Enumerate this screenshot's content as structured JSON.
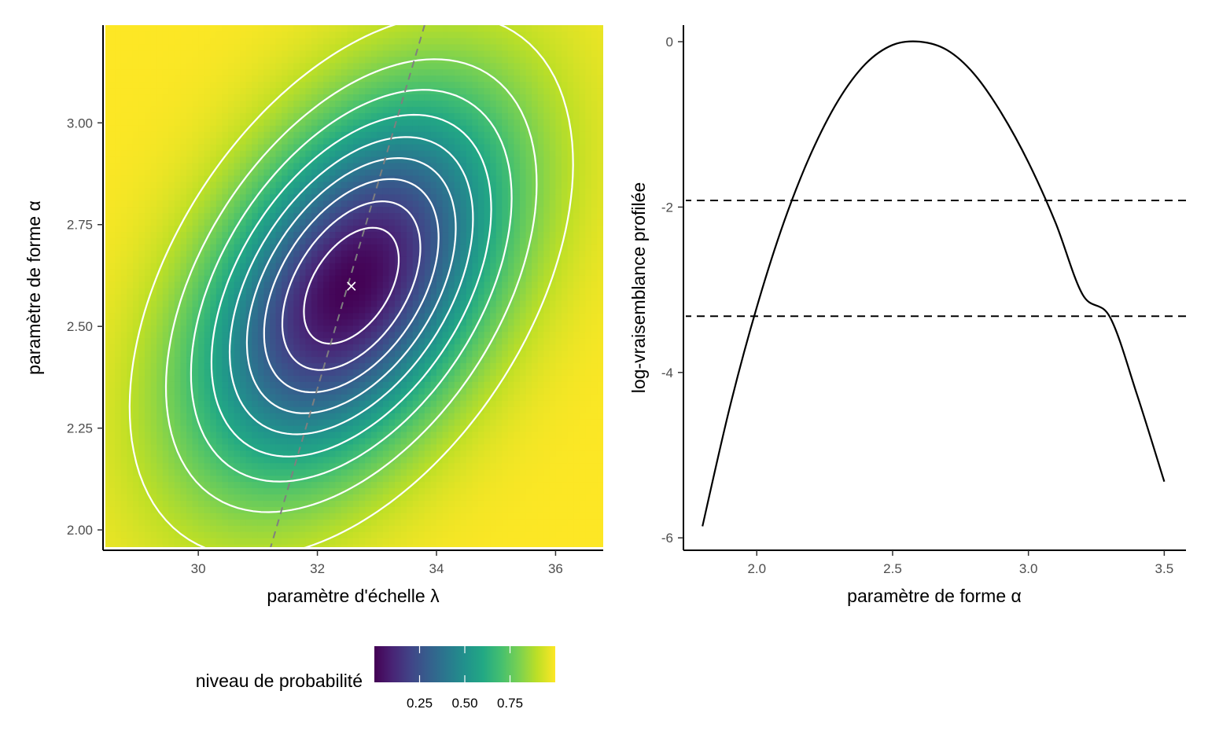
{
  "chart_data": [
    {
      "type": "heatmap",
      "xlabel": "paramètre d'échelle λ",
      "ylabel": "paramètre de forme α",
      "xlim": [
        28.4,
        36.8
      ],
      "ylim": [
        1.95,
        3.24
      ],
      "x_ticks": [
        30,
        32,
        34,
        36
      ],
      "x_tick_labels": [
        "30",
        "32",
        "34",
        "36"
      ],
      "y_ticks": [
        2.0,
        2.25,
        2.5,
        2.75,
        3.0
      ],
      "y_tick_labels": [
        "2.00",
        "2.25",
        "2.50",
        "2.75",
        "3.00"
      ],
      "mle": {
        "lambda": 32.57,
        "alpha": 2.6,
        "marker": "×"
      },
      "contour_levels": [
        0.1,
        0.2,
        0.3,
        0.4,
        0.5,
        0.6,
        0.7,
        0.8,
        0.9
      ],
      "profile_line": {
        "style": "dashed",
        "color": "#7f7f7f",
        "from": {
          "lambda": 31.2,
          "alpha": 1.95
        },
        "to": {
          "lambda": 33.8,
          "alpha": 3.24
        }
      },
      "legend": {
        "title": "niveau de probabilité",
        "ticks": [
          0.25,
          0.5,
          0.75
        ],
        "tick_labels": [
          "0.25",
          "0.50",
          "0.75"
        ],
        "range": [
          0,
          1
        ],
        "placement": "bottom"
      },
      "colormap": "viridis",
      "grid": false
    },
    {
      "type": "line",
      "xlabel": "paramètre de forme α",
      "ylabel": "log-vraisemblance profilée",
      "xlim": [
        1.73,
        3.58
      ],
      "ylim": [
        -6.15,
        0.2
      ],
      "x_ticks": [
        2.0,
        2.5,
        3.0,
        3.5
      ],
      "x_tick_labels": [
        "2.0",
        "2.5",
        "3.0",
        "3.5"
      ],
      "y_ticks": [
        0,
        -2,
        -4,
        -6
      ],
      "y_tick_labels": [
        "0",
        "-2",
        "-4",
        "-6"
      ],
      "series": [
        {
          "x": [
            1.8,
            1.9,
            2.0,
            2.1,
            2.2,
            2.3,
            2.4,
            2.5,
            2.6,
            2.7,
            2.8,
            2.9,
            3.0,
            3.1,
            3.2,
            3.3,
            3.4,
            3.5
          ],
          "values": [
            -5.86,
            -4.43,
            -3.21,
            -2.18,
            -1.35,
            -0.71,
            -0.27,
            -0.04,
            0.0,
            -0.1,
            -0.39,
            -0.86,
            -1.46,
            -2.19,
            -3.06,
            -3.33,
            -4.27,
            -5.32
          ]
        }
      ],
      "hlines": [
        -1.92,
        -3.32
      ],
      "hline_style": "dashed",
      "grid": false
    }
  ]
}
